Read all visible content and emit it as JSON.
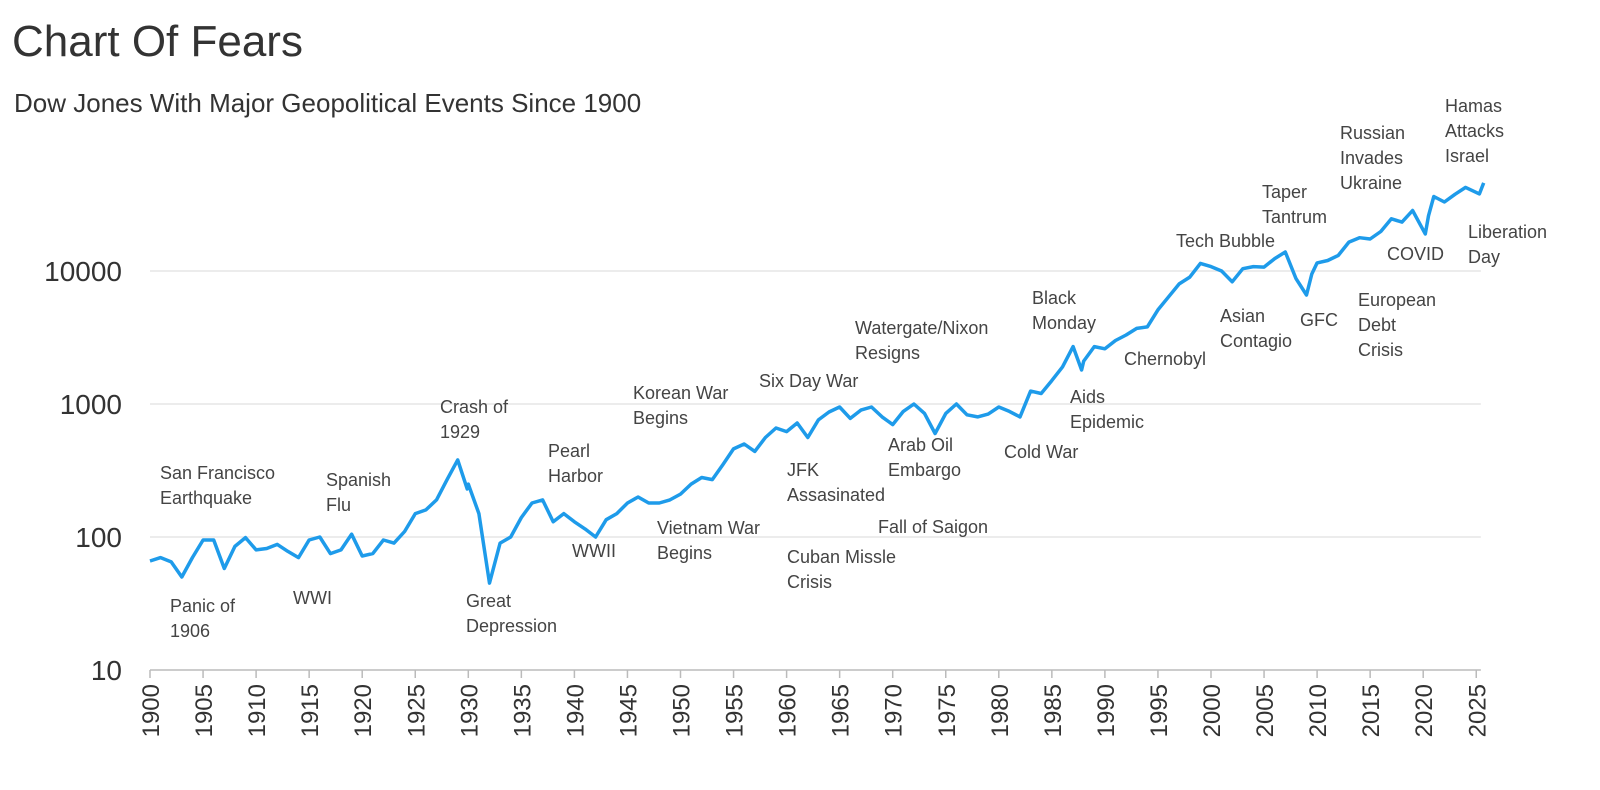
{
  "chart_data": {
    "type": "line",
    "title": "Chart Of Fears",
    "subtitle": "Dow Jones With Major Geopolitical Events Since 1900",
    "log_scale": true,
    "grid": true,
    "ylim": [
      10,
      100000
    ],
    "yticks": [
      10,
      100,
      1000,
      10000
    ],
    "xlim": [
      1900,
      2026
    ],
    "xticks": [
      1900,
      1905,
      1910,
      1915,
      1920,
      1925,
      1930,
      1935,
      1940,
      1945,
      1950,
      1955,
      1960,
      1965,
      1970,
      1975,
      1980,
      1985,
      1990,
      1995,
      2000,
      2005,
      2010,
      2015,
      2020,
      2025
    ],
    "x": [
      1900,
      1901,
      1902,
      1903,
      1904,
      1905,
      1906,
      1907,
      1908,
      1909,
      1910,
      1911,
      1912,
      1913,
      1914,
      1915,
      1916,
      1917,
      1918,
      1919,
      1920,
      1921,
      1922,
      1923,
      1924,
      1925,
      1926,
      1927,
      1928,
      1929,
      1929.9,
      1930,
      1931,
      1932,
      1933,
      1934,
      1935,
      1936,
      1937,
      1938,
      1939,
      1940,
      1941,
      1942,
      1943,
      1944,
      1945,
      1946,
      1947,
      1948,
      1949,
      1950,
      1951,
      1952,
      1953,
      1954,
      1955,
      1956,
      1957,
      1958,
      1959,
      1960,
      1961,
      1962,
      1963,
      1964,
      1965,
      1966,
      1967,
      1968,
      1969,
      1970,
      1971,
      1972,
      1973,
      1974,
      1975,
      1976,
      1977,
      1978,
      1979,
      1980,
      1981,
      1982,
      1983,
      1984,
      1985,
      1986,
      1987,
      1987.8,
      1988,
      1989,
      1990,
      1991,
      1992,
      1993,
      1994,
      1995,
      1996,
      1997,
      1998,
      1999,
      2000,
      2001,
      2002,
      2003,
      2004,
      2005,
      2006,
      2007,
      2008,
      2009,
      2009.5,
      2010,
      2011,
      2012,
      2013,
      2014,
      2015,
      2016,
      2017,
      2018,
      2019,
      2020.2,
      2020.5,
      2021,
      2022,
      2023,
      2024,
      2025.3,
      2025.7
    ],
    "series": [
      {
        "name": "Dow Jones",
        "color": "#1e9bea",
        "values": [
          66,
          70,
          65,
          50,
          70,
          95,
          95,
          58,
          85,
          99,
          80,
          82,
          88,
          78,
          70,
          95,
          100,
          75,
          80,
          105,
          72,
          75,
          95,
          90,
          110,
          150,
          160,
          190,
          270,
          380,
          230,
          250,
          150,
          45,
          90,
          100,
          140,
          180,
          190,
          130,
          150,
          130,
          115,
          100,
          135,
          150,
          180,
          200,
          180,
          180,
          190,
          210,
          250,
          280,
          270,
          350,
          460,
          500,
          440,
          560,
          660,
          620,
          720,
          560,
          760,
          870,
          950,
          780,
          900,
          950,
          800,
          700,
          880,
          1000,
          850,
          600,
          850,
          1000,
          830,
          800,
          840,
          950,
          880,
          800,
          1250,
          1200,
          1500,
          1900,
          2700,
          1800,
          2100,
          2700,
          2600,
          3000,
          3300,
          3700,
          3800,
          5100,
          6400,
          8000,
          9000,
          11400,
          10800,
          10000,
          8300,
          10400,
          10800,
          10700,
          12400,
          13900,
          8800,
          6600,
          9500,
          11500,
          12000,
          13100,
          16500,
          17800,
          17400,
          19800,
          24700,
          23300,
          28500,
          19000,
          26000,
          36300,
          33000,
          37700,
          42500,
          38000,
          46000
        ]
      }
    ],
    "annotations": [
      {
        "lines": [
          "San Francisco",
          "Earthquake"
        ]
      },
      {
        "lines": [
          "Panic of",
          "1906"
        ]
      },
      {
        "lines": [
          "WWI"
        ]
      },
      {
        "lines": [
          "Spanish",
          "Flu"
        ]
      },
      {
        "lines": [
          "Crash of",
          "1929"
        ]
      },
      {
        "lines": [
          "Great",
          "Depression"
        ]
      },
      {
        "lines": [
          "Pearl",
          "Harbor"
        ]
      },
      {
        "lines": [
          "WWII"
        ]
      },
      {
        "lines": [
          "Korean War",
          "Begins"
        ]
      },
      {
        "lines": [
          "Vietnam War",
          "Begins"
        ]
      },
      {
        "lines": [
          "Six Day War"
        ]
      },
      {
        "lines": [
          "JFK",
          "Assasinated"
        ]
      },
      {
        "lines": [
          "Cuban Missle",
          "Crisis"
        ]
      },
      {
        "lines": [
          "Watergate/Nixon",
          "Resigns"
        ]
      },
      {
        "lines": [
          "Arab Oil",
          "Embargo"
        ]
      },
      {
        "lines": [
          "Fall of Saigon"
        ]
      },
      {
        "lines": [
          "Cold War"
        ]
      },
      {
        "lines": [
          "Black",
          "Monday"
        ]
      },
      {
        "lines": [
          "Aids",
          "Epidemic"
        ]
      },
      {
        "lines": [
          "Chernobyl"
        ]
      },
      {
        "lines": [
          "Tech Bubble"
        ]
      },
      {
        "lines": [
          "Asian",
          "Contagio"
        ]
      },
      {
        "lines": [
          "Taper",
          "Tantrum"
        ]
      },
      {
        "lines": [
          "GFC"
        ]
      },
      {
        "lines": [
          "Russian",
          "Invades",
          "Ukraine"
        ]
      },
      {
        "lines": [
          "European",
          "Debt",
          "Crisis"
        ]
      },
      {
        "lines": [
          "COVID"
        ]
      },
      {
        "lines": [
          "Hamas",
          "Attacks",
          "Israel"
        ]
      },
      {
        "lines": [
          "Liberation",
          "Day"
        ]
      }
    ]
  }
}
